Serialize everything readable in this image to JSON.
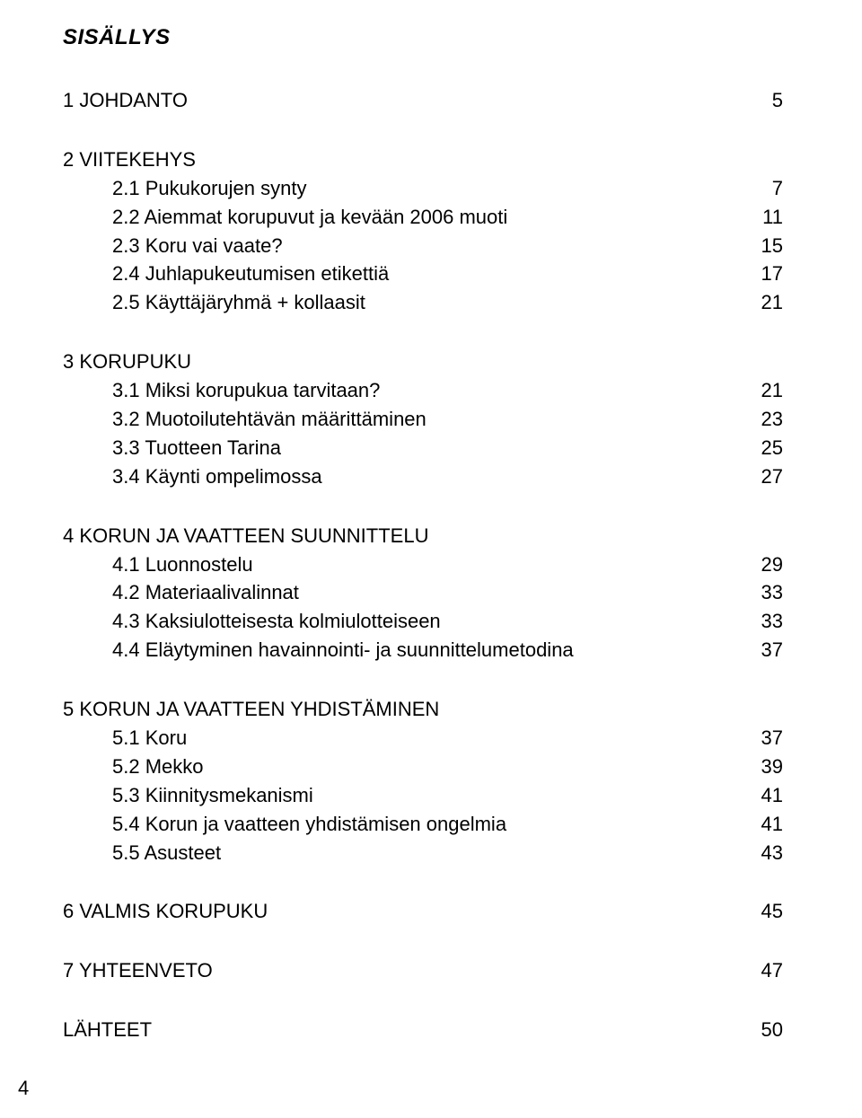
{
  "title": "SISÄLLYS",
  "page_number": "4",
  "font": {
    "body_family": "Arial, Helvetica, sans-serif",
    "body_size_pt": 16,
    "title_size_pt": 18,
    "title_weight": "bold",
    "title_style": "italic",
    "color": "#000000",
    "background": "#ffffff"
  },
  "sections": [
    {
      "heading": {
        "label": "1 JOHDANTO",
        "page": "5"
      },
      "items": []
    },
    {
      "heading": {
        "label": "2 VIITEKEHYS",
        "page": ""
      },
      "items": [
        {
          "label": "2.1 Pukukorujen synty",
          "page": "7"
        },
        {
          "label": "2.2 Aiemmat korupuvut ja kevään 2006 muoti",
          "page": "11"
        },
        {
          "label": "2.3 Koru vai vaate?",
          "page": "15"
        },
        {
          "label": "2.4 Juhlapukeutumisen etikettiä",
          "page": "17"
        },
        {
          "label": "2.5 Käyttäjäryhmä + kollaasit",
          "page": "21"
        }
      ]
    },
    {
      "heading": {
        "label": "3 KORUPUKU",
        "page": ""
      },
      "items": [
        {
          "label": "3.1 Miksi korupukua tarvitaan?",
          "page": "21"
        },
        {
          "label": "3.2 Muotoilutehtävän määrittäminen",
          "page": "23"
        },
        {
          "label": "3.3 Tuotteen Tarina",
          "page": "25"
        },
        {
          "label": "3.4 Käynti ompelimossa",
          "page": "27"
        }
      ]
    },
    {
      "heading": {
        "label": "4 KORUN JA VAATTEEN SUUNNITTELU",
        "page": ""
      },
      "items": [
        {
          "label": "4.1 Luonnostelu",
          "page": "29"
        },
        {
          "label": "4.2 Materiaalivalinnat",
          "page": "33"
        },
        {
          "label": "4.3 Kaksiulotteisesta kolmiulotteiseen",
          "page": "33"
        },
        {
          "label": "4.4 Eläytyminen havainnointi- ja suunnittelumetodina",
          "page": "37"
        }
      ]
    },
    {
      "heading": {
        "label": "5 KORUN JA VAATTEEN YHDISTÄMINEN",
        "page": ""
      },
      "items": [
        {
          "label": "5.1 Koru",
          "page": "37"
        },
        {
          "label": "5.2 Mekko",
          "page": "39"
        },
        {
          "label": "5.3 Kiinnitysmekanismi",
          "page": "41"
        },
        {
          "label": "5.4 Korun ja vaatteen yhdistämisen ongelmia",
          "page": "41"
        },
        {
          "label": "5.5 Asusteet",
          "page": "43"
        }
      ]
    },
    {
      "heading": {
        "label": "6 VALMIS KORUPUKU",
        "page": "45"
      },
      "items": []
    },
    {
      "heading": {
        "label": "7 YHTEENVETO",
        "page": "47"
      },
      "items": []
    },
    {
      "heading": {
        "label": "LÄHTEET",
        "page": "50"
      },
      "items": []
    }
  ]
}
